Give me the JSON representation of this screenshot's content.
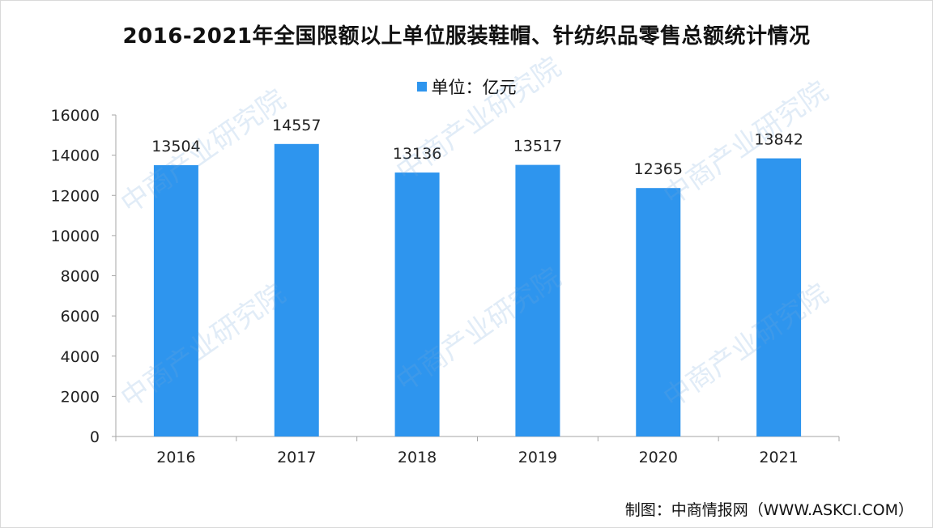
{
  "chart_data": {
    "type": "bar",
    "title": "2016-2021年全国限额以上单位服装鞋帽、针纺织品零售总额统计情况",
    "categories": [
      "2016",
      "2017",
      "2018",
      "2019",
      "2020",
      "2021"
    ],
    "series": [
      {
        "name": "单位：亿元",
        "values": [
          13504,
          14557,
          13136,
          13517,
          12365,
          13842
        ]
      }
    ],
    "data_labels": [
      "13504",
      "14557",
      "13136",
      "13517",
      "12365",
      "13842"
    ],
    "yticks": [
      "0",
      "2000",
      "4000",
      "6000",
      "8000",
      "10000",
      "12000",
      "14000",
      "16000"
    ],
    "ylim": [
      0,
      16000
    ],
    "xlabel": "",
    "ylabel": "",
    "grid": false,
    "legend_position": "top-center",
    "bar_color": "#2e95ee"
  },
  "source_text": "制图：中商情报网（WWW.ASKCI.COM）",
  "watermark_text": "中商产业研究院"
}
